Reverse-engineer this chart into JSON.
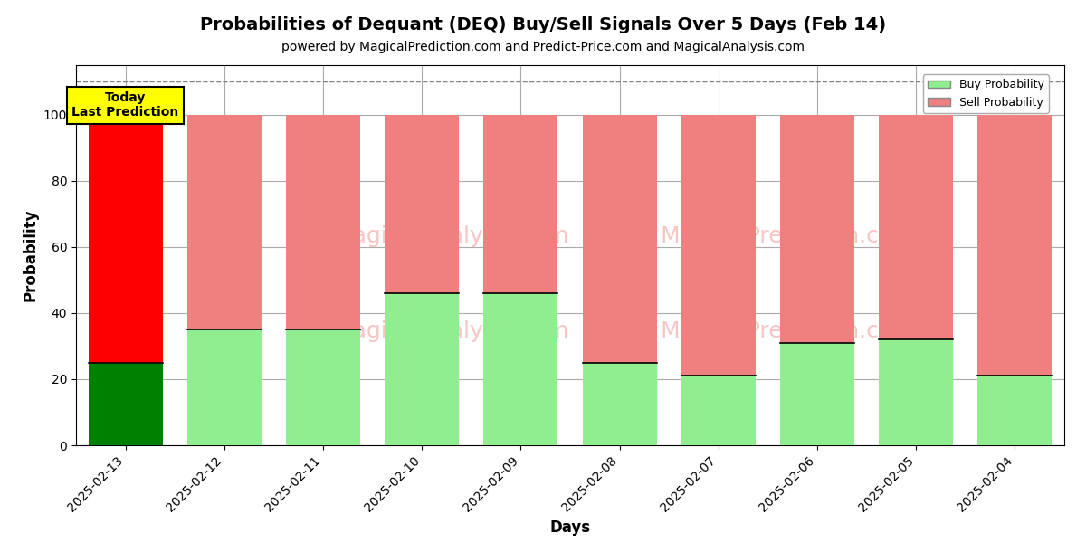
{
  "title": "Probabilities of Dequant (DEQ) Buy/Sell Signals Over 5 Days (Feb 14)",
  "subtitle": "powered by MagicalPrediction.com and Predict-Price.com and MagicalAnalysis.com",
  "xlabel": "Days",
  "ylabel": "Probability",
  "categories": [
    "2025-02-13",
    "2025-02-12",
    "2025-02-11",
    "2025-02-10",
    "2025-02-09",
    "2025-02-08",
    "2025-02-07",
    "2025-02-06",
    "2025-02-05",
    "2025-02-04"
  ],
  "buy_values": [
    25,
    35,
    35,
    46,
    46,
    25,
    21,
    31,
    32,
    21
  ],
  "sell_values": [
    75,
    65,
    65,
    54,
    54,
    75,
    79,
    69,
    68,
    79
  ],
  "today_bar_buy_color": "#008000",
  "today_bar_sell_color": "#FF0000",
  "other_bar_buy_color": "#90EE90",
  "other_bar_sell_color": "#F08080",
  "today_label_bg": "#FFFF00",
  "today_label_text": "Today\nLast Prediction",
  "legend_buy_label": "Buy Probability",
  "legend_sell_label": "Sell Probability",
  "legend_buy_color": "#90EE90",
  "legend_sell_color": "#F08080",
  "ylim": [
    0,
    115
  ],
  "yticks": [
    0,
    20,
    40,
    60,
    80,
    100
  ],
  "dashed_line_y": 110,
  "bar_width": 0.75,
  "background_color": "#ffffff",
  "grid_color": "#aaaaaa",
  "title_fontsize": 14,
  "subtitle_fontsize": 10,
  "axis_label_fontsize": 12,
  "tick_fontsize": 10
}
